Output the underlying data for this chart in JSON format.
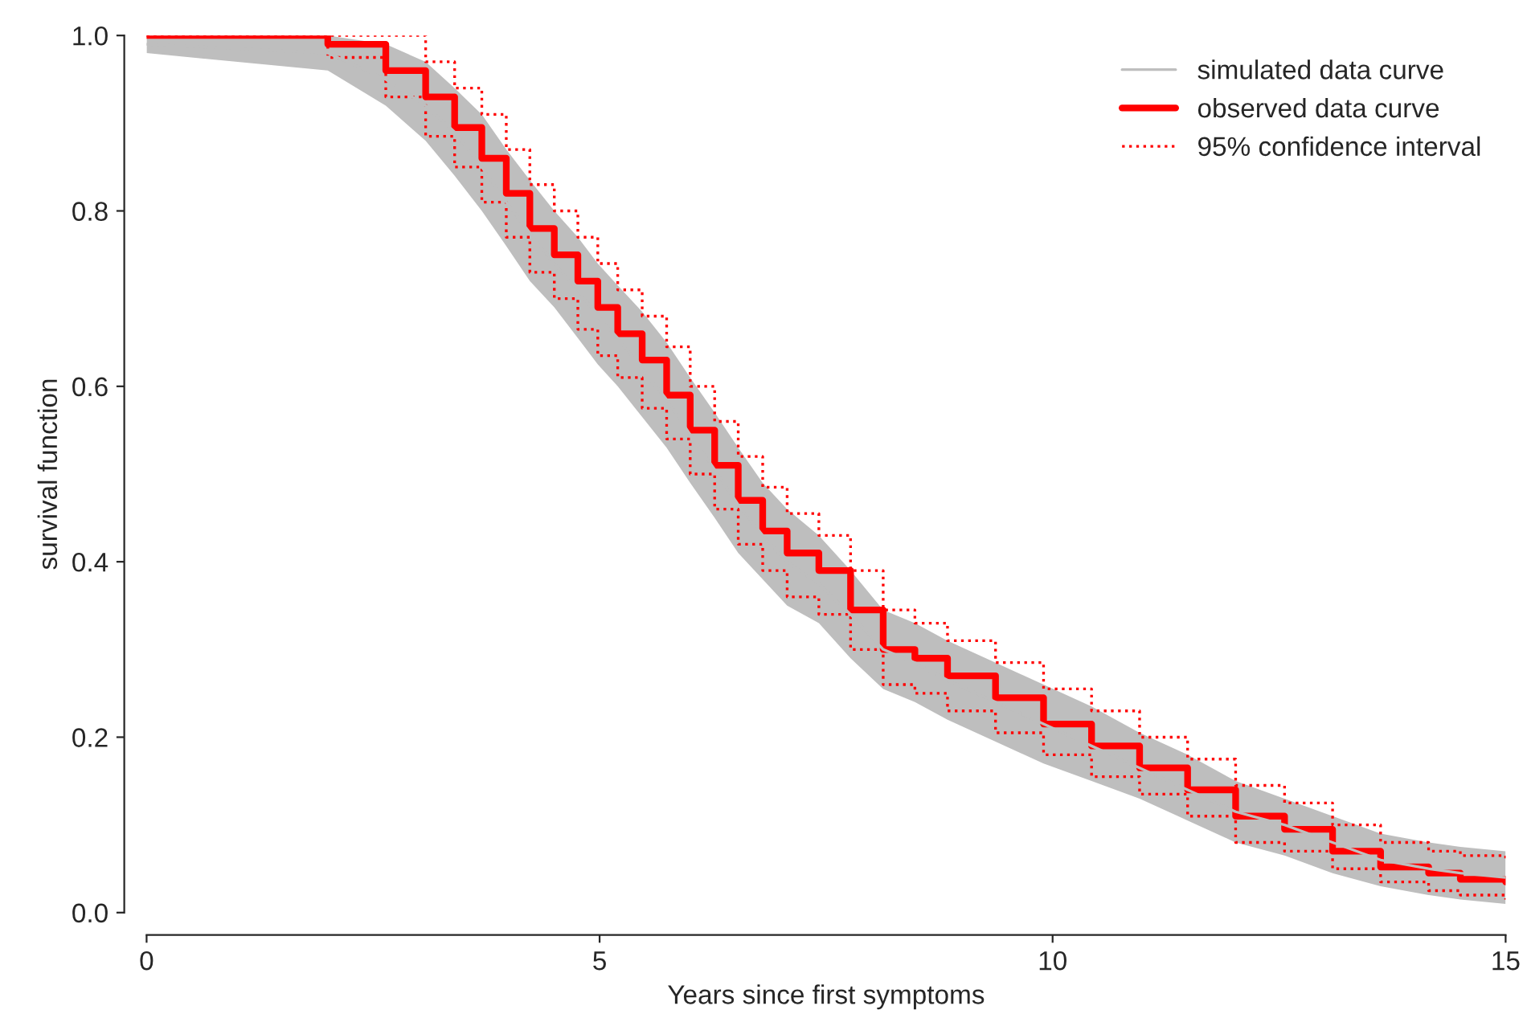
{
  "chart_data": {
    "type": "step",
    "xlabel": "Years since first symptoms",
    "ylabel": "survival function",
    "x": [
      0,
      2.0,
      2.64,
      3.08,
      3.4,
      3.7,
      3.97,
      4.23,
      4.5,
      4.76,
      4.98,
      5.2,
      5.47,
      5.74,
      6.0,
      6.27,
      6.53,
      6.8,
      7.07,
      7.42,
      7.77,
      8.13,
      8.48,
      8.84,
      9.37,
      9.9,
      10.43,
      10.96,
      11.49,
      12.02,
      12.56,
      13.09,
      13.62,
      14.15,
      14.5,
      15
    ],
    "series": [
      {
        "name": "simulated data curve",
        "type": "line",
        "color": "#bebebe",
        "values": [
          0.99,
          0.98,
          0.95,
          0.92,
          0.89,
          0.85,
          0.81,
          0.775,
          0.74,
          0.71,
          0.68,
          0.655,
          0.62,
          0.585,
          0.545,
          0.505,
          0.465,
          0.43,
          0.4,
          0.375,
          0.34,
          0.3,
          0.285,
          0.265,
          0.24,
          0.215,
          0.19,
          0.165,
          0.14,
          0.115,
          0.1,
          0.08,
          0.06,
          0.05,
          0.045,
          0.04
        ],
        "lower": [
          0.98,
          0.96,
          0.92,
          0.88,
          0.84,
          0.8,
          0.76,
          0.72,
          0.69,
          0.655,
          0.625,
          0.6,
          0.565,
          0.53,
          0.49,
          0.45,
          0.41,
          0.38,
          0.35,
          0.33,
          0.29,
          0.255,
          0.24,
          0.22,
          0.195,
          0.17,
          0.15,
          0.13,
          0.105,
          0.08,
          0.065,
          0.045,
          0.03,
          0.02,
          0.015,
          0.01
        ],
        "upper": [
          1.0,
          1.0,
          0.99,
          0.97,
          0.94,
          0.91,
          0.87,
          0.835,
          0.8,
          0.77,
          0.74,
          0.715,
          0.685,
          0.65,
          0.61,
          0.57,
          0.53,
          0.49,
          0.46,
          0.43,
          0.39,
          0.345,
          0.33,
          0.31,
          0.285,
          0.26,
          0.235,
          0.205,
          0.18,
          0.15,
          0.13,
          0.11,
          0.09,
          0.08,
          0.075,
          0.07
        ]
      },
      {
        "name": "observed data curve",
        "color": "#ff0000",
        "values": [
          1.0,
          0.99,
          0.96,
          0.93,
          0.895,
          0.86,
          0.82,
          0.78,
          0.75,
          0.72,
          0.69,
          0.66,
          0.63,
          0.59,
          0.55,
          0.51,
          0.47,
          0.435,
          0.41,
          0.39,
          0.345,
          0.3,
          0.29,
          0.27,
          0.245,
          0.215,
          0.19,
          0.165,
          0.14,
          0.11,
          0.095,
          0.07,
          0.052,
          0.045,
          0.038,
          0.035
        ]
      },
      {
        "name": "95% confidence interval",
        "color": "#ff0000",
        "line_style": "dotted",
        "values": [
          1.0,
          1.0,
          1.0,
          0.97,
          0.94,
          0.91,
          0.87,
          0.83,
          0.8,
          0.77,
          0.74,
          0.71,
          0.68,
          0.645,
          0.6,
          0.56,
          0.52,
          0.485,
          0.455,
          0.43,
          0.39,
          0.345,
          0.33,
          0.31,
          0.285,
          0.255,
          0.23,
          0.2,
          0.175,
          0.145,
          0.125,
          0.1,
          0.08,
          0.07,
          0.065,
          0.06
        ]
      },
      {
        "color": "#ff0000",
        "line_style": "dotted",
        "values": [
          1.0,
          0.975,
          0.93,
          0.885,
          0.85,
          0.81,
          0.77,
          0.73,
          0.7,
          0.665,
          0.635,
          0.61,
          0.575,
          0.54,
          0.5,
          0.46,
          0.42,
          0.39,
          0.36,
          0.34,
          0.3,
          0.26,
          0.25,
          0.23,
          0.205,
          0.18,
          0.155,
          0.135,
          0.11,
          0.08,
          0.07,
          0.05,
          0.035,
          0.025,
          0.02,
          0.015
        ]
      }
    ],
    "xlim": [
      0,
      15
    ],
    "xticks": [
      0,
      5,
      10,
      15
    ],
    "ylim": [
      0,
      1
    ],
    "yticks": [
      {
        "value": 0,
        "label": "0.0"
      },
      {
        "value": 0.2,
        "label": "0.2"
      },
      {
        "value": 0.4,
        "label": "0.4"
      },
      {
        "value": 0.6,
        "label": "0.6"
      },
      {
        "value": 0.8,
        "label": "0.8"
      },
      {
        "value": 1,
        "label": "1.0"
      }
    ],
    "grid": false,
    "legend": "top right"
  }
}
